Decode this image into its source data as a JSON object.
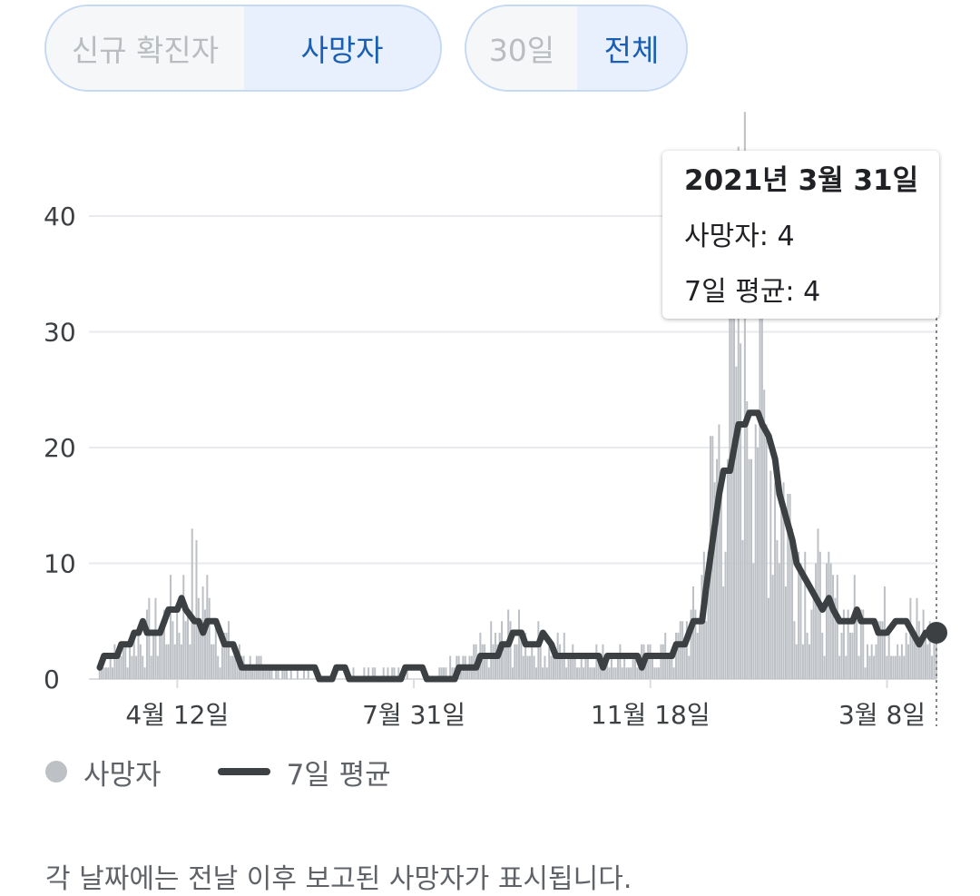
{
  "toggles": {
    "metric": [
      {
        "label": "신규 확진자",
        "selected": false
      },
      {
        "label": "사망자",
        "selected": true
      }
    ],
    "range": [
      {
        "label": "30일",
        "selected": false
      },
      {
        "label": "전체",
        "selected": true
      }
    ]
  },
  "tooltip": {
    "date": "2021년 3월 31일",
    "deaths_line": "사망자: 4",
    "avg_line": "7일 평균: 4"
  },
  "legend": {
    "bars_label": "사망자",
    "line_label": "7일 평균"
  },
  "footnote": "각 날짜에는 전날 이후 보고된 사망자가 표시됩니다.",
  "colors": {
    "bars": "#bdc1c6",
    "line": "#3c4043",
    "grid": "#e8eaed",
    "selected_text": "#1a5fb4",
    "selected_bg": "#e7f0fc"
  },
  "chart_data": {
    "type": "bar",
    "title": "",
    "xlabel": "",
    "ylabel": "",
    "ylim": [
      0,
      40
    ],
    "y_ticks": [
      0,
      10,
      20,
      30,
      40
    ],
    "x_tick_labels": [
      {
        "label": "4월 12일",
        "day": 36
      },
      {
        "label": "7월 31일",
        "day": 146
      },
      {
        "label": "11월 18일",
        "day": 256
      },
      {
        "label": "3월 8일",
        "day": 366
      }
    ],
    "total_days": 389,
    "series": [
      {
        "name": "사망자",
        "kind": "bar",
        "peaks": [
          [
            0,
            1
          ],
          [
            20,
            4
          ],
          [
            36,
            6
          ],
          [
            44,
            9
          ],
          [
            60,
            3
          ],
          [
            75,
            1
          ],
          [
            110,
            0
          ],
          [
            130,
            1
          ],
          [
            150,
            0
          ],
          [
            175,
            2
          ],
          [
            190,
            4
          ],
          [
            205,
            3
          ],
          [
            230,
            2
          ],
          [
            255,
            2
          ],
          [
            268,
            3
          ],
          [
            278,
            6
          ],
          [
            285,
            17
          ],
          [
            292,
            25
          ],
          [
            298,
            34
          ],
          [
            303,
            33
          ],
          [
            310,
            22
          ],
          [
            320,
            15
          ],
          [
            330,
            9
          ],
          [
            345,
            6
          ],
          [
            360,
            5
          ],
          [
            375,
            5
          ],
          [
            389,
            4
          ]
        ]
      },
      {
        "name": "7일 평균",
        "kind": "line",
        "points": [
          [
            0,
            1
          ],
          [
            2,
            2
          ],
          [
            8,
            2
          ],
          [
            10,
            3
          ],
          [
            14,
            3
          ],
          [
            16,
            4
          ],
          [
            18,
            4
          ],
          [
            20,
            5
          ],
          [
            22,
            4
          ],
          [
            26,
            4
          ],
          [
            28,
            4
          ],
          [
            30,
            5
          ],
          [
            32,
            6
          ],
          [
            36,
            6
          ],
          [
            38,
            7
          ],
          [
            40,
            6
          ],
          [
            44,
            5
          ],
          [
            46,
            5
          ],
          [
            48,
            4
          ],
          [
            50,
            5
          ],
          [
            54,
            5
          ],
          [
            56,
            4
          ],
          [
            58,
            3
          ],
          [
            62,
            3
          ],
          [
            64,
            2
          ],
          [
            66,
            1
          ],
          [
            100,
            1
          ],
          [
            102,
            0
          ],
          [
            108,
            0
          ],
          [
            110,
            1
          ],
          [
            114,
            1
          ],
          [
            116,
            0
          ],
          [
            140,
            0
          ],
          [
            142,
            1
          ],
          [
            150,
            1
          ],
          [
            152,
            0
          ],
          [
            165,
            0
          ],
          [
            167,
            1
          ],
          [
            175,
            1
          ],
          [
            177,
            2
          ],
          [
            185,
            2
          ],
          [
            187,
            3
          ],
          [
            190,
            3
          ],
          [
            192,
            4
          ],
          [
            196,
            4
          ],
          [
            198,
            3
          ],
          [
            204,
            3
          ],
          [
            206,
            4
          ],
          [
            210,
            3
          ],
          [
            212,
            2
          ],
          [
            232,
            2
          ],
          [
            234,
            1
          ],
          [
            236,
            2
          ],
          [
            250,
            2
          ],
          [
            252,
            1
          ],
          [
            254,
            2
          ],
          [
            266,
            2
          ],
          [
            268,
            3
          ],
          [
            272,
            3
          ],
          [
            274,
            4
          ],
          [
            276,
            5
          ],
          [
            280,
            5
          ],
          [
            282,
            8
          ],
          [
            285,
            12
          ],
          [
            288,
            16
          ],
          [
            290,
            18
          ],
          [
            293,
            18
          ],
          [
            295,
            20
          ],
          [
            297,
            22
          ],
          [
            300,
            22
          ],
          [
            302,
            23
          ],
          [
            306,
            23
          ],
          [
            308,
            22
          ],
          [
            311,
            21
          ],
          [
            314,
            19
          ],
          [
            316,
            16
          ],
          [
            319,
            14
          ],
          [
            322,
            12
          ],
          [
            324,
            10
          ],
          [
            327,
            9
          ],
          [
            330,
            8
          ],
          [
            333,
            7
          ],
          [
            336,
            6
          ],
          [
            339,
            7
          ],
          [
            341,
            6
          ],
          [
            344,
            5
          ],
          [
            350,
            5
          ],
          [
            352,
            6
          ],
          [
            354,
            5
          ],
          [
            360,
            5
          ],
          [
            362,
            4
          ],
          [
            366,
            4
          ],
          [
            370,
            5
          ],
          [
            375,
            5
          ],
          [
            378,
            4
          ],
          [
            381,
            3
          ],
          [
            384,
            4
          ],
          [
            389,
            4
          ]
        ]
      }
    ],
    "highlight": {
      "date": "2021년 3월 31일",
      "day": 389,
      "value": 4
    }
  }
}
